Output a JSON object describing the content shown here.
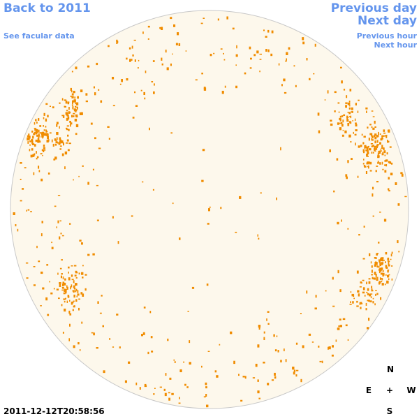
{
  "links": {
    "back": "Back to 2011",
    "facular": "See facular data",
    "previous_day": "Previous day",
    "next_day": "Next day",
    "previous_hour": "Previous hour",
    "next_hour": "Next hour"
  },
  "timestamp": "2011-12-12T20:58:56",
  "compass": {
    "north": "N",
    "east": "E",
    "center": "+",
    "west": "W",
    "south": "S"
  }
}
